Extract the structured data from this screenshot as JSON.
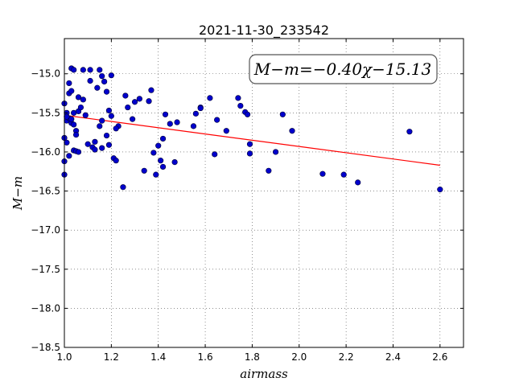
{
  "chart_data": {
    "type": "scatter",
    "title": "2021-11-30_233542",
    "xlabel": "airmass",
    "ylabel": "M−m",
    "xlim": [
      1.0,
      2.7
    ],
    "ylim": [
      -18.5,
      -14.55
    ],
    "y_inverted": true,
    "grid": true,
    "x_ticks": [
      "1.0",
      "1.2",
      "1.4",
      "1.6",
      "1.8",
      "2.0",
      "2.2",
      "2.4",
      "2.6"
    ],
    "y_ticks": [
      "−15.0",
      "−15.5",
      "−16.0",
      "−16.5",
      "−17.0",
      "−17.5",
      "−18.0",
      "−18.5"
    ],
    "annotation": "M−m=−0.40χ−15.13",
    "fit": {
      "slope": -0.4,
      "intercept": -15.13,
      "x_range": [
        1.0,
        2.6
      ],
      "color": "#ff0000"
    },
    "marker_color": "#0000cc",
    "x": [
      1.0,
      1.0,
      1.0,
      1.01,
      1.01,
      1.01,
      1.02,
      1.02,
      1.02,
      1.02,
      1.03,
      1.03,
      1.03,
      1.04,
      1.04,
      1.04,
      1.05,
      1.05,
      1.05,
      1.06,
      1.06,
      1.07,
      1.08,
      1.08,
      1.09,
      1.1,
      1.11,
      1.11,
      1.12,
      1.13,
      1.14,
      1.15,
      1.15,
      1.16,
      1.16,
      1.16,
      1.17,
      1.18,
      1.18,
      1.19,
      1.19,
      1.2,
      1.2,
      1.21,
      1.22,
      1.23,
      1.25,
      1.26,
      1.27,
      1.29,
      1.3,
      1.32,
      1.34,
      1.36,
      1.37,
      1.38,
      1.39,
      1.4,
      1.41,
      1.42,
      1.43,
      1.45,
      1.47,
      1.48,
      1.55,
      1.56,
      1.58,
      1.62,
      1.64,
      1.65,
      1.69,
      1.74,
      1.75,
      1.77,
      1.78,
      1.79,
      1.79,
      1.87,
      1.9,
      1.93,
      1.97,
      2.1,
      2.19,
      2.25,
      2.47,
      2.6,
      1.0,
      1.01,
      1.03,
      1.04,
      1.06,
      1.13,
      1.22,
      1.42,
      1.58
    ],
    "y": [
      -15.82,
      -16.12,
      -16.29,
      -15.5,
      -15.6,
      -15.88,
      -15.12,
      -15.25,
      -15.57,
      -16.05,
      -14.93,
      -15.22,
      -15.63,
      -14.95,
      -15.5,
      -15.98,
      -15.73,
      -15.78,
      -15.99,
      -15.3,
      -15.48,
      -15.43,
      -14.95,
      -15.33,
      -15.53,
      -15.9,
      -14.95,
      -15.09,
      -15.94,
      -15.87,
      -15.18,
      -14.95,
      -15.67,
      -15.03,
      -15.6,
      -15.95,
      -15.1,
      -15.23,
      -15.79,
      -15.47,
      -15.91,
      -15.02,
      -15.54,
      -16.08,
      -16.11,
      -15.67,
      -16.45,
      -15.28,
      -15.43,
      -15.58,
      -15.36,
      -15.32,
      -16.24,
      -15.35,
      -15.21,
      -16.01,
      -16.29,
      -15.92,
      -16.11,
      -16.19,
      -15.52,
      -15.64,
      -16.13,
      -15.62,
      -15.67,
      -15.51,
      -15.43,
      -15.31,
      -16.03,
      -15.59,
      -15.73,
      -15.31,
      -15.41,
      -15.49,
      -15.52,
      -15.9,
      -16.02,
      -16.24,
      -16.0,
      -15.52,
      -15.73,
      -16.28,
      -16.29,
      -16.39,
      -15.74,
      -16.48,
      -15.38,
      -15.55,
      -15.58,
      -15.65,
      -16.0,
      -15.97,
      -15.7,
      -15.83,
      -15.44
    ]
  }
}
